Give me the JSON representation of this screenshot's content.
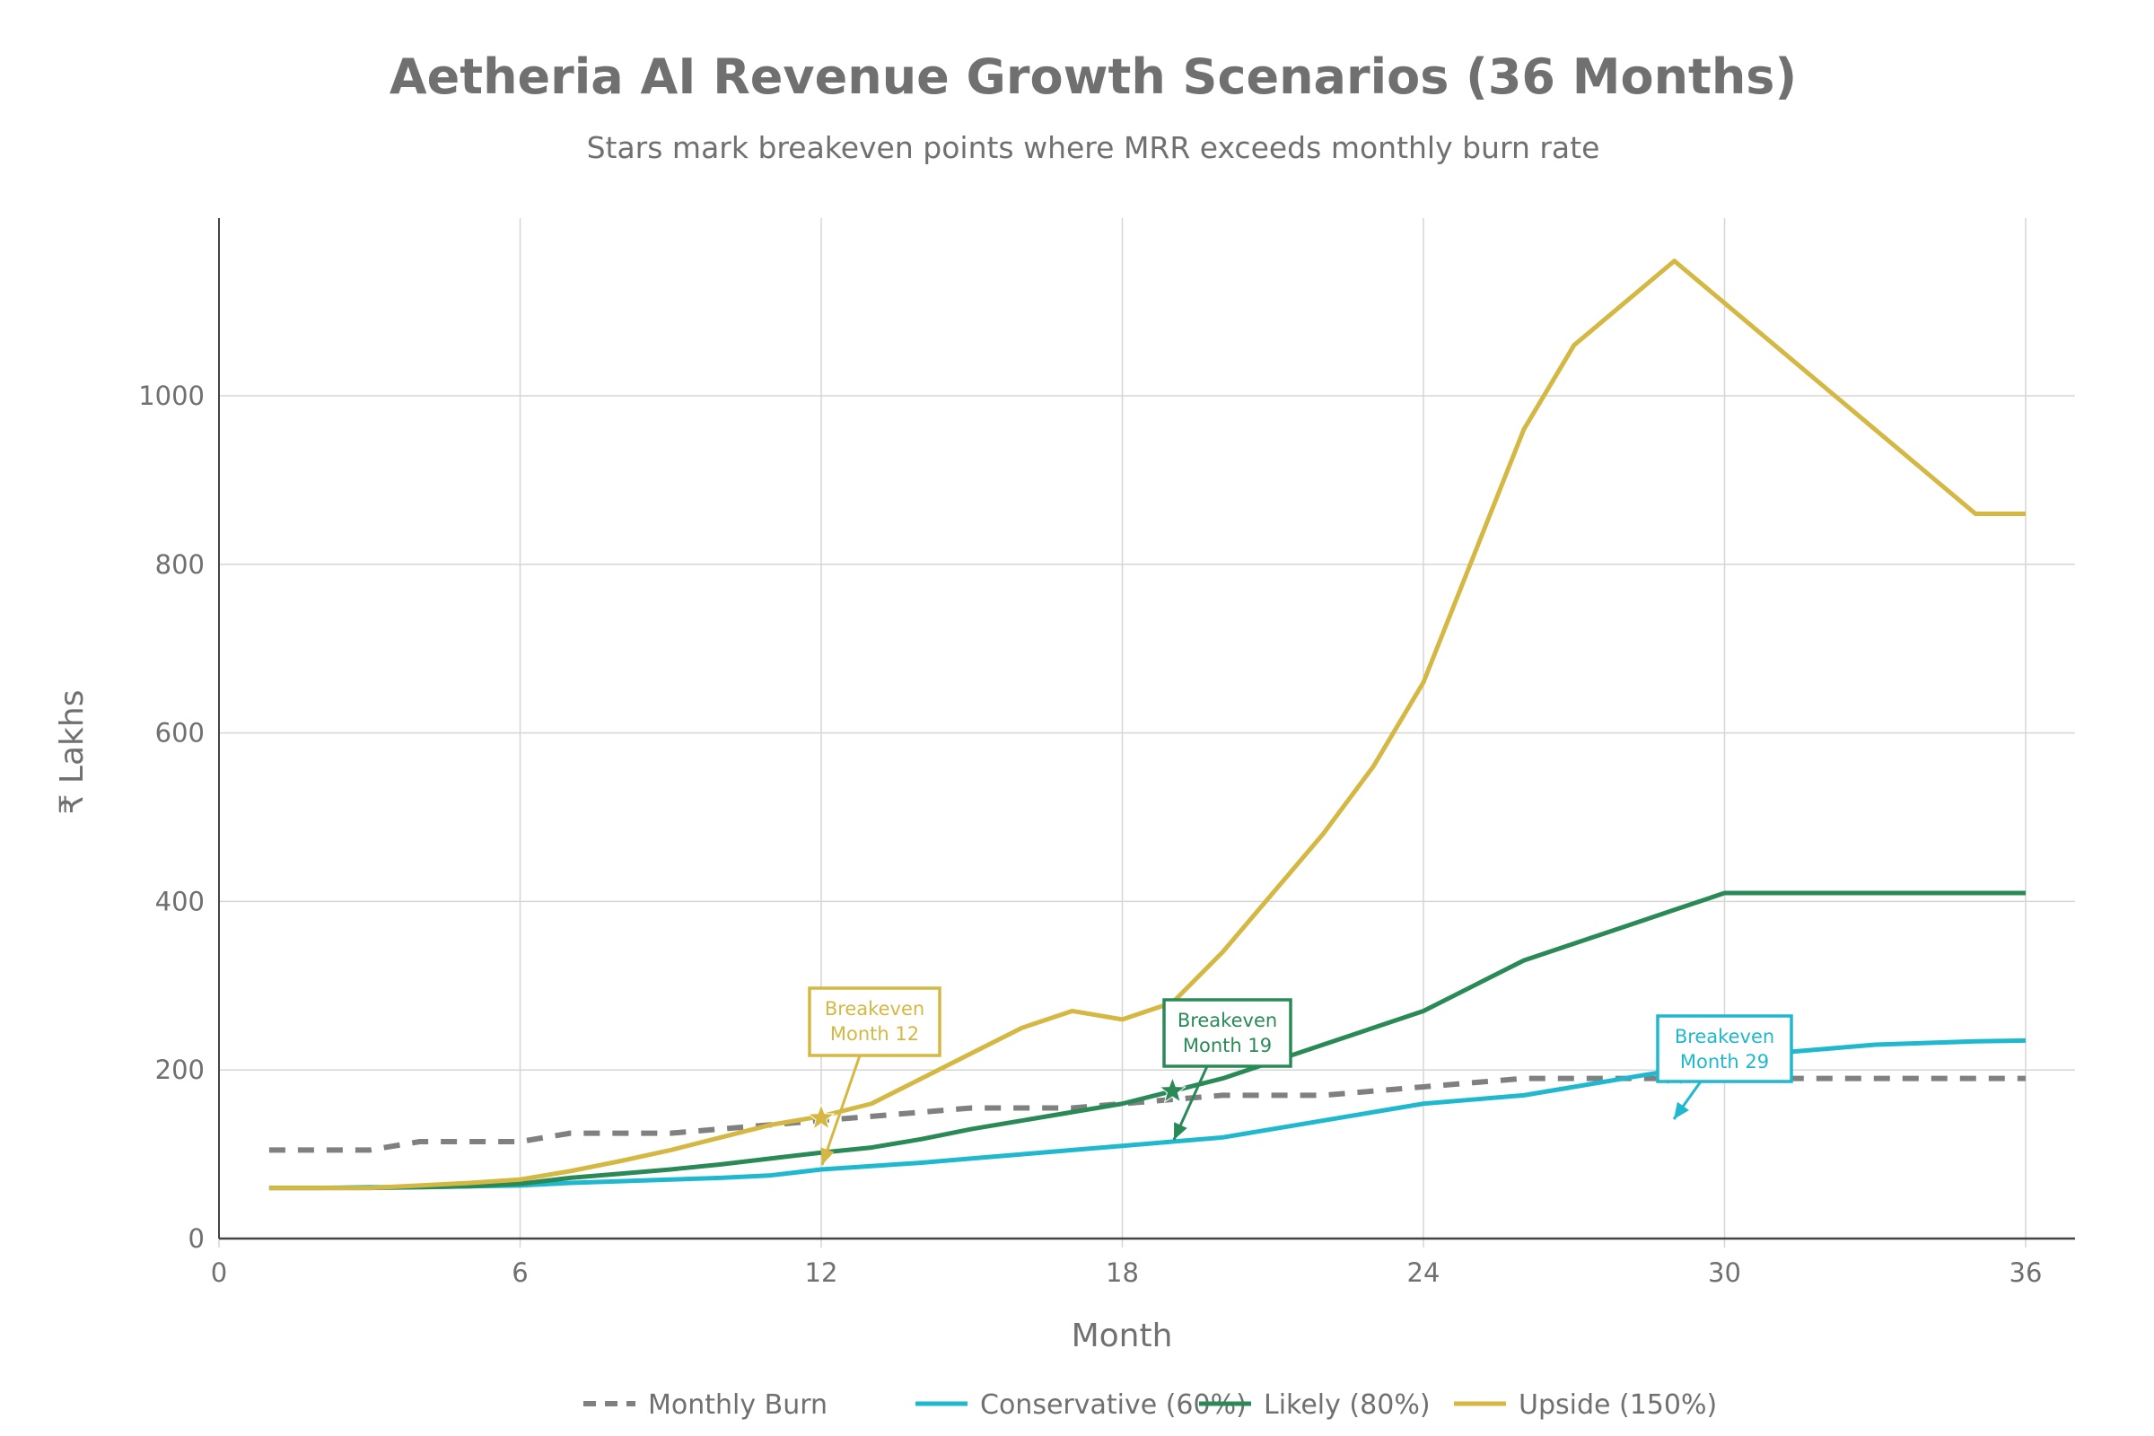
{
  "chart_data": {
    "type": "line",
    "title": "Aetheria AI Revenue Growth Scenarios (36 Months)",
    "subtitle": "Stars mark breakeven points where MRR exceeds monthly burn rate",
    "xlabel": "Month",
    "ylabel": "₹ Lakhs",
    "xlim": [
      0,
      37
    ],
    "ylim": [
      0,
      1200
    ],
    "xticks": [
      0,
      6,
      12,
      18,
      24,
      30,
      36
    ],
    "yticks": [
      0,
      200,
      400,
      600,
      800,
      1000
    ],
    "grid": true,
    "legend_position": "bottom",
    "x": [
      1,
      2,
      3,
      4,
      5,
      6,
      7,
      8,
      9,
      10,
      11,
      12,
      13,
      14,
      15,
      16,
      17,
      18,
      19,
      20,
      21,
      22,
      23,
      24,
      25,
      26,
      27,
      28,
      29,
      30,
      31,
      32,
      33,
      34,
      35,
      36
    ],
    "series": [
      {
        "name": "Monthly Burn",
        "color": "#808080",
        "dash": true,
        "values": [
          105,
          105,
          105,
          115,
          115,
          115,
          125,
          125,
          125,
          130,
          135,
          140,
          145,
          150,
          155,
          155,
          155,
          160,
          165,
          170,
          170,
          170,
          175,
          180,
          185,
          190,
          190,
          190,
          190,
          190,
          190,
          190,
          190,
          190,
          190,
          190
        ]
      },
      {
        "name": "Conservative (60%)",
        "color": "#1FB8CF",
        "dash": false,
        "values": [
          60,
          60,
          61,
          61,
          62,
          63,
          66,
          68,
          70,
          72,
          75,
          82,
          86,
          90,
          95,
          100,
          105,
          110,
          115,
          120,
          130,
          140,
          150,
          160,
          165,
          170,
          180,
          190,
          200,
          210,
          220,
          225,
          230,
          232,
          234,
          235
        ]
      },
      {
        "name": "Likely (80%)",
        "color": "#2A8A57",
        "dash": false,
        "values": [
          60,
          60,
          60,
          61,
          62,
          65,
          72,
          77,
          82,
          88,
          95,
          102,
          108,
          118,
          130,
          140,
          150,
          160,
          175,
          190,
          210,
          230,
          250,
          270,
          300,
          330,
          350,
          370,
          390,
          410,
          410,
          410,
          410,
          410,
          410,
          410
        ]
      },
      {
        "name": "Upside (150%)",
        "color": "#D4B843",
        "dash": false,
        "values": [
          60,
          60,
          60,
          63,
          66,
          70,
          80,
          92,
          105,
          120,
          135,
          145,
          160,
          190,
          220,
          250,
          270,
          260,
          280,
          340,
          410,
          480,
          560,
          660,
          810,
          960,
          1060,
          1110,
          1160,
          1110,
          1060,
          1010,
          960,
          910,
          860,
          860
        ]
      }
    ],
    "breakevens": [
      {
        "series": "Upside (150%)",
        "month": 12,
        "value": 143,
        "label_line1": "Breakeven",
        "label_line2": "Month 12"
      },
      {
        "series": "Likely (80%)",
        "month": 19,
        "value": 175,
        "label_line1": "Breakeven",
        "label_line2": "Month 19"
      },
      {
        "series": "Conservative (60%)",
        "month": 29,
        "value": 195,
        "label_line1": "Breakeven",
        "label_line2": "Month 29"
      }
    ]
  }
}
